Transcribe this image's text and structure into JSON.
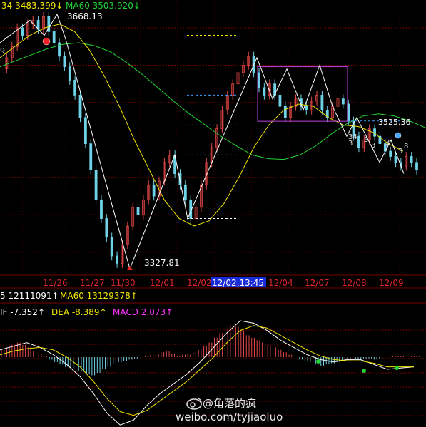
{
  "top_legend": [
    {
      "text": "34 3483.399↓",
      "color": "#f2e600"
    },
    {
      "text": "MA60 3503.920↓",
      "color": "#22d433"
    }
  ],
  "price_labels": {
    "high": "3668.13",
    "low": "3327.81",
    "right_mid": "3525.36",
    "left_partial": "9"
  },
  "price_overlay_labels": [
    "34 ",
    "3 ",
    "3 ",
    "3 ",
    "3 ",
    "8",
    "3"
  ],
  "date_axis": {
    "labels": [
      "11/26",
      "11/27",
      "11/30",
      "12/01",
      "12/02",
      "12/04",
      "12/07",
      "12/08",
      "12/09"
    ],
    "highlight": "12/02,13:45",
    "label_color": "#e0242b",
    "highlight_bg": "#1a2bd8",
    "highlight_color": "#ffffff"
  },
  "volume_legend": [
    {
      "text": "5 12111091↑",
      "color": "#ffffff"
    },
    {
      "text": "MA60 13129378↑",
      "color": "#f2e600"
    }
  ],
  "macd_legend": [
    {
      "text": "IF -7.352↑",
      "color": "#ffffff"
    },
    {
      "text": "DEA -8.389↑",
      "color": "#f2e600"
    },
    {
      "text": "MACD 2.073↑",
      "color": "#ff33ff"
    }
  ],
  "watermark": {
    "handle": "@角落的疯",
    "url": "weibo.com/tyjiaoluo",
    "icon": "weibo-logo-icon"
  },
  "colors": {
    "background": "#000000",
    "grid": "#7a0000",
    "up_candle": "#e54848",
    "down_candle": "#6fd3e8",
    "ma_yellow": "#f2e600",
    "ma_green": "#22d433",
    "zigzag": "#ffffff",
    "box": "#c040e0",
    "dashed_yellow": "#f2e600",
    "dashed_blue": "#3aa0ff"
  },
  "chart_data": {
    "type": "candlestick",
    "price": {
      "high": 3668.13,
      "low": 3327.81,
      "marked_level": 3525.36,
      "legend_ma": [
        {
          "name": "34",
          "value": 3483.399
        },
        {
          "name": "MA60",
          "value": 3503.92
        }
      ]
    },
    "zigzag_points": [
      3630,
      3660,
      3640,
      3668.13,
      3635,
      3327.81,
      3480,
      3395,
      3610,
      3555,
      3595,
      3540,
      3600,
      3545,
      3505,
      3530,
      3470,
      3500,
      3455
    ],
    "candle_close_series": [
      3595,
      3610,
      3625,
      3650,
      3640,
      3655,
      3660,
      3648,
      3665,
      3645,
      3630,
      3612,
      3598,
      3580,
      3560,
      3530,
      3495,
      3460,
      3420,
      3395,
      3370,
      3345,
      3335,
      3360,
      3385,
      3410,
      3400,
      3420,
      3440,
      3425,
      3445,
      3470,
      3480,
      3455,
      3440,
      3420,
      3395,
      3410,
      3440,
      3470,
      3490,
      3515,
      3540,
      3560,
      3575,
      3590,
      3600,
      3612,
      3590,
      3570,
      3560,
      3575,
      3560,
      3545,
      3530,
      3545,
      3555,
      3545,
      3540,
      3552,
      3560,
      3540,
      3530,
      3545,
      3555,
      3548,
      3525,
      3505,
      3490,
      3500,
      3515,
      3505,
      3495,
      3485,
      3478,
      3470,
      3465,
      3478,
      3470,
      3460
    ],
    "ma_yellow_series": [
      3610,
      3625,
      3640,
      3650,
      3655,
      3645,
      3620,
      3585,
      3545,
      3500,
      3460,
      3420,
      3395,
      3385,
      3392,
      3415,
      3450,
      3490,
      3520,
      3540,
      3548,
      3545,
      3530,
      3520,
      3518,
      3510,
      3495,
      3485
    ],
    "ma_green_series": [
      3598,
      3606,
      3614,
      3622,
      3628,
      3630,
      3626,
      3618,
      3604,
      3588,
      3570,
      3552,
      3535,
      3520,
      3505,
      3492,
      3480,
      3475,
      3474,
      3480,
      3492,
      3508,
      3522,
      3532,
      3535,
      3532,
      3525,
      3516
    ],
    "volume": {
      "legend": [
        {
          "name": "5",
          "value": 12111091
        },
        {
          "name": "MA60",
          "value": 13129378
        }
      ]
    },
    "macd": {
      "DIF": -7.352,
      "DEA": -8.389,
      "MACD": 2.073,
      "histogram": [
        6,
        8,
        10,
        12,
        10,
        8,
        5,
        3,
        1,
        -2,
        -4,
        -6,
        -8,
        -9,
        -11,
        -12,
        -14,
        -15,
        -13,
        -10,
        -8,
        -6,
        -4,
        -3,
        -2,
        -1,
        0,
        1,
        2,
        3,
        4,
        5,
        3,
        1,
        2,
        3,
        4,
        6,
        9,
        12,
        16,
        20,
        24,
        26,
        25,
        22,
        18,
        16,
        14,
        12,
        10,
        8,
        6,
        4,
        2,
        0,
        -2,
        -3,
        -4,
        -6,
        -7,
        -6,
        -5,
        -4,
        -3,
        -3,
        -2,
        -2,
        -1,
        -1,
        -2,
        -1,
        0,
        1,
        1,
        1,
        0,
        1,
        1,
        0
      ]
    }
  }
}
